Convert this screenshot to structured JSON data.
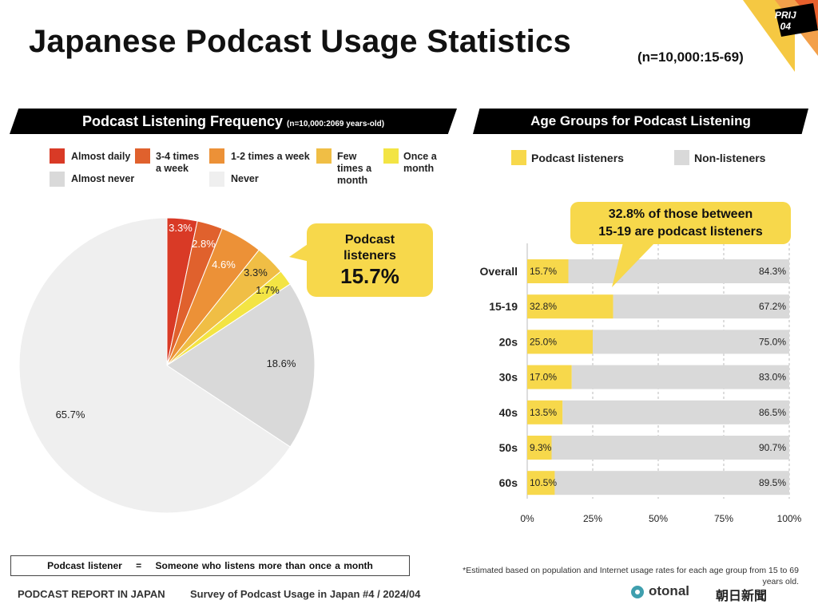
{
  "title": "Japanese Podcast Usage Statistics",
  "subtitle": "(n=10,000:15-69)",
  "badge": {
    "line1": "PRIJ",
    "line2": "04"
  },
  "colors": {
    "almost_daily": "#d93a26",
    "3_4": "#e0612d",
    "1_2": "#ec9137",
    "few": "#f0be45",
    "once": "#f3e444",
    "almost_never": "#d9d9d9",
    "never": "#efefef",
    "listener": "#f7d84b",
    "non_listener": "#d9d9d9"
  },
  "chart_data": [
    {
      "type": "pie",
      "title": "Podcast Listening Frequency",
      "title_note": "(n=10,000:2069 years-old)",
      "slices": [
        {
          "name": "Almost daily",
          "value": 3.3,
          "label": "3.3%"
        },
        {
          "name": "3-4 times a week",
          "value": 2.8,
          "label": "2.8%"
        },
        {
          "name": "1-2 times a week",
          "value": 4.6,
          "label": "4.6%"
        },
        {
          "name": "Few times a month",
          "value": 3.3,
          "label": "3.3%"
        },
        {
          "name": "Once a month",
          "value": 1.7,
          "label": "1.7%"
        },
        {
          "name": "Almost never",
          "value": 18.6,
          "label": "18.6%"
        },
        {
          "name": "Never",
          "value": 65.7,
          "label": "65.7%"
        }
      ],
      "callout": {
        "line1": "Podcast",
        "line2": "listeners",
        "value": "15.7%"
      }
    },
    {
      "type": "bar",
      "stacked": true,
      "orientation": "horizontal",
      "title": "Age Groups for Podcast Listening",
      "categories": [
        "Overall",
        "15-19",
        "20s",
        "30s",
        "40s",
        "50s",
        "60s"
      ],
      "series": [
        {
          "name": "Podcast listeners",
          "values": [
            15.7,
            32.8,
            25.0,
            17.0,
            13.5,
            9.3,
            10.5
          ]
        },
        {
          "name": "Non-listeners",
          "values": [
            84.3,
            67.2,
            75.0,
            83.0,
            86.5,
            90.7,
            89.5
          ]
        }
      ],
      "xticks": [
        "0%",
        "25%",
        "50%",
        "75%",
        "100%"
      ],
      "xlim": [
        0,
        100
      ],
      "grid": "vertical-dashed",
      "callout": {
        "line1": "32.8% of those between",
        "line2": "15-19 are podcast listeners"
      }
    }
  ],
  "definition": {
    "term": "Podcast listener",
    "eq": "=",
    "meaning": "Someone who listens more than once a month"
  },
  "note": {
    "line1": "*Estimated based on population and Internet usage rates for each age group from 15 to 69",
    "line2": "years old."
  },
  "footer": {
    "report": "PODCAST REPORT IN JAPAN",
    "survey": "Survey of Podcast Usage in Japan #4 / 2024/04"
  },
  "logos": {
    "otonal": "otonal",
    "asahi": "朝日新聞"
  }
}
